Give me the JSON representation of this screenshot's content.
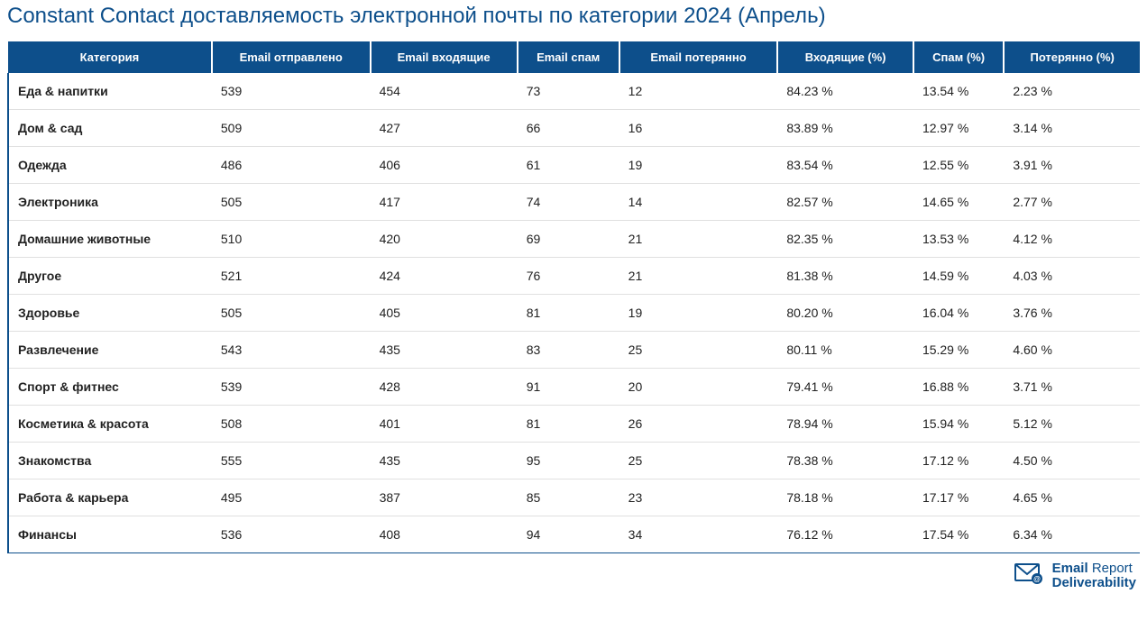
{
  "title": "Constant Contact доставляемость электронной почты по категории 2024 (Апрель)",
  "colors": {
    "brand": "#0d4f8b",
    "header_bg": "#0d4f8b",
    "header_text": "#ffffff",
    "row_border": "#e0e0e0",
    "text": "#222222",
    "bg": "#ffffff"
  },
  "table": {
    "columns": [
      "Категория",
      "Email отправлено",
      "Email входящие",
      "Email спам",
      "Email потерянно",
      "Входящие (%)",
      "Спам (%)",
      "Потерянно (%)"
    ],
    "rows": [
      [
        "Еда & напитки",
        "539",
        "454",
        "73",
        "12",
        "84.23 %",
        "13.54 %",
        "2.23 %"
      ],
      [
        "Дом & сад",
        "509",
        "427",
        "66",
        "16",
        "83.89 %",
        "12.97 %",
        "3.14 %"
      ],
      [
        "Одежда",
        "486",
        "406",
        "61",
        "19",
        "83.54 %",
        "12.55 %",
        "3.91 %"
      ],
      [
        "Электроника",
        "505",
        "417",
        "74",
        "14",
        "82.57 %",
        "14.65 %",
        "2.77 %"
      ],
      [
        "Домашние животные",
        "510",
        "420",
        "69",
        "21",
        "82.35 %",
        "13.53 %",
        "4.12 %"
      ],
      [
        "Другое",
        "521",
        "424",
        "76",
        "21",
        "81.38 %",
        "14.59 %",
        "4.03 %"
      ],
      [
        "Здоровье",
        "505",
        "405",
        "81",
        "19",
        "80.20 %",
        "16.04 %",
        "3.76 %"
      ],
      [
        "Развлечение",
        "543",
        "435",
        "83",
        "25",
        "80.11 %",
        "15.29 %",
        "4.60 %"
      ],
      [
        "Спорт & фитнес",
        "539",
        "428",
        "91",
        "20",
        "79.41 %",
        "16.88 %",
        "3.71 %"
      ],
      [
        "Косметика & красота",
        "508",
        "401",
        "81",
        "26",
        "78.94 %",
        "15.94 %",
        "5.12 %"
      ],
      [
        "Знакомства",
        "555",
        "435",
        "95",
        "25",
        "78.38 %",
        "17.12 %",
        "4.50 %"
      ],
      [
        "Работа & карьера",
        "495",
        "387",
        "85",
        "23",
        "78.18 %",
        "17.17 %",
        "4.65 %"
      ],
      [
        "Финансы",
        "536",
        "408",
        "94",
        "34",
        "76.12 %",
        "17.54 %",
        "6.34 %"
      ]
    ]
  },
  "footer": {
    "logo_word1": "Email",
    "logo_word2": "Report",
    "logo_word3": "Deliverability"
  }
}
